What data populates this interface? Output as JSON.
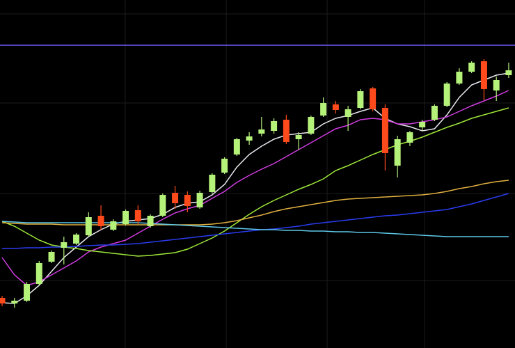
{
  "chart_data": {
    "type": "candlestick",
    "x": [
      0,
      1,
      2,
      3,
      4,
      5,
      6,
      7,
      8,
      9,
      10,
      11,
      12,
      13,
      14,
      15,
      16,
      17,
      18,
      19,
      20,
      21,
      22,
      23,
      24,
      25,
      26,
      27,
      28,
      29,
      30,
      31,
      32,
      33,
      34,
      35,
      36,
      37,
      38,
      39,
      40,
      41
    ],
    "xlim": [
      -0.17,
      41.51
    ],
    "ylim": [
      0,
      500
    ],
    "up_color": "#b5f27a",
    "down_color": "#ff4a1c",
    "open": [
      72,
      64,
      68,
      92,
      124,
      144,
      150,
      162,
      190,
      170,
      178,
      198,
      175,
      190,
      223,
      220,
      202,
      224,
      252,
      278,
      298,
      308,
      312,
      328,
      300,
      308,
      334,
      350,
      332,
      345,
      373,
      345,
      262,
      295,
      317,
      328,
      348,
      380,
      397,
      412,
      370,
      392
    ],
    "high": [
      75,
      72,
      95,
      125,
      140,
      160,
      165,
      195,
      205,
      185,
      199,
      205,
      192,
      222,
      233,
      225,
      226,
      251,
      274,
      302,
      310,
      332,
      330,
      335,
      310,
      334,
      360,
      355,
      348,
      372,
      375,
      350,
      305,
      312,
      328,
      350,
      382,
      402,
      412,
      415,
      390,
      410
    ],
    "low": [
      60,
      58,
      66,
      90,
      122,
      120,
      148,
      160,
      170,
      168,
      176,
      178,
      173,
      188,
      200,
      195,
      200,
      222,
      250,
      276,
      292,
      304,
      308,
      293,
      285,
      306,
      332,
      337,
      312,
      343,
      340,
      255,
      245,
      290,
      312,
      326,
      346,
      378,
      395,
      356,
      355,
      388
    ],
    "close": [
      64,
      68,
      92,
      122,
      138,
      152,
      163,
      188,
      175,
      182,
      197,
      182,
      190,
      220,
      208,
      204,
      223,
      249,
      272,
      300,
      304,
      314,
      326,
      296,
      306,
      332,
      352,
      342,
      343,
      369,
      343,
      280,
      300,
      310,
      325,
      348,
      380,
      397,
      410,
      372,
      385,
      399
    ],
    "level": {
      "value": 435,
      "color": "#6f5cff"
    },
    "series": [
      {
        "color": "#e8e8f0",
        "values": [
          65,
          64,
          75,
          90,
          110,
          130,
          145,
          160,
          170,
          178,
          182,
          184,
          186,
          192,
          202,
          208,
          210,
          220,
          235,
          260,
          278,
          290,
          300,
          306,
          308,
          310,
          322,
          330,
          334,
          340,
          345,
          330,
          322,
          318,
          312,
          315,
          335,
          360,
          378,
          385,
          392,
          395
        ]
      },
      {
        "color": "#d03ce0",
        "values": [
          130,
          105,
          90,
          95,
          105,
          115,
          125,
          138,
          145,
          150,
          155,
          165,
          175,
          185,
          194,
          200,
          205,
          215,
          225,
          238,
          248,
          257,
          265,
          275,
          285,
          295,
          305,
          315,
          320,
          328,
          330,
          328,
          322,
          322,
          325,
          328,
          332,
          340,
          348,
          355,
          362,
          370
        ]
      },
      {
        "color": "#9ee83a",
        "values": [
          182,
          175,
          165,
          155,
          148,
          145,
          143,
          140,
          138,
          136,
          134,
          132,
          133,
          135,
          137,
          142,
          150,
          158,
          168,
          180,
          192,
          203,
          212,
          220,
          228,
          235,
          243,
          255,
          262,
          270,
          278,
          285,
          292,
          297,
          303,
          310,
          317,
          323,
          330,
          335,
          340,
          345
        ]
      },
      {
        "color": "#e0b040",
        "values": [
          180,
          179,
          178,
          178,
          178,
          177,
          177,
          177,
          177,
          177,
          177,
          177,
          177,
          177,
          177,
          177,
          177,
          178,
          180,
          183,
          187,
          191,
          196,
          200,
          203,
          206,
          209,
          212,
          214,
          215,
          216,
          217,
          218,
          219,
          220,
          222,
          225,
          229,
          232,
          236,
          239,
          241
        ]
      },
      {
        "color": "#2a3cf0",
        "values": [
          143,
          143,
          144,
          144,
          145,
          145,
          146,
          147,
          148,
          148,
          149,
          150,
          152,
          154,
          156,
          158,
          160,
          162,
          164,
          166,
          168,
          170,
          171,
          173,
          175,
          178,
          180,
          182,
          184,
          186,
          188,
          190,
          191,
          193,
          195,
          197,
          199,
          203,
          207,
          212,
          217,
          222
        ]
      },
      {
        "color": "#5ec8e8",
        "values": [
          182,
          181,
          180,
          180,
          180,
          180,
          180,
          180,
          180,
          180,
          180,
          180,
          179,
          178,
          177,
          176,
          175,
          174,
          173,
          172,
          171,
          170,
          170,
          169,
          169,
          168,
          168,
          167,
          167,
          166,
          166,
          165,
          164,
          163,
          162,
          161,
          160,
          160,
          160,
          160,
          160,
          160
        ]
      }
    ]
  }
}
